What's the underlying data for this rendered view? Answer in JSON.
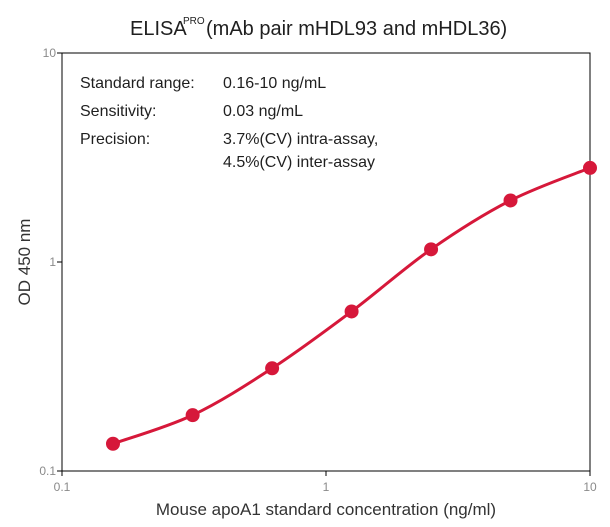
{
  "chart_data": {
    "type": "line",
    "title": "ELISA",
    "title_superscript": "PRO",
    "subtitle": "(mAb pair mHDL93 and mHDL36)",
    "xlabel": "Mouse apoA1 standard concentration (ng/ml)",
    "ylabel": "OD 450 nm",
    "xscale": "log",
    "yscale": "log",
    "xlim": [
      0.1,
      10
    ],
    "ylim": [
      0.1,
      10
    ],
    "x_ticks": [
      "0.1",
      "1",
      "10"
    ],
    "y_ticks": [
      "0.1",
      "1",
      "10"
    ],
    "grid": false,
    "line_color": "#d6183a",
    "marker_color": "#d6183a",
    "series": [
      {
        "x": [
          0.156,
          0.3125,
          0.625,
          1.25,
          2.5,
          5,
          10
        ],
        "y": [
          0.135,
          0.185,
          0.31,
          0.58,
          1.15,
          1.97,
          2.82
        ]
      }
    ],
    "annotations": [
      {
        "label": "Standard range:",
        "value": "0.16-10 ng/mL"
      },
      {
        "label": "Sensitivity:",
        "value": "0.03 ng/mL"
      },
      {
        "label": "Precision:",
        "value": "3.7%(CV) intra-assay,",
        "value2": "4.5%(CV) inter-assay"
      }
    ]
  }
}
